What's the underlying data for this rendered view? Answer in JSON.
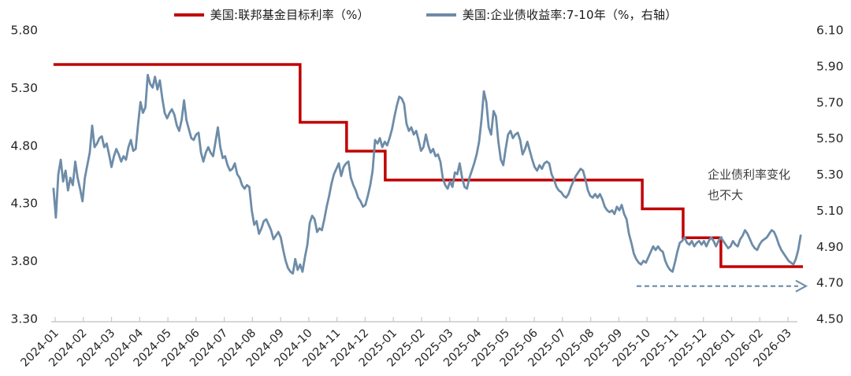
{
  "legend": [
    {
      "label": "美国:联邦基金目标利率（%）",
      "color": "#C00000"
    },
    {
      "label": "美国:企业债收益率:7-10年（%，右轴）",
      "color": "#6D8CA8"
    }
  ],
  "annotation": {
    "line1": "企业债利率变化",
    "line2": "也不大"
  },
  "chart_data": {
    "type": "line",
    "title": "",
    "xlabel": "",
    "ylabel_left": "",
    "ylabel_right": "",
    "grid": false,
    "legend_position": "top-center",
    "x_axis": {
      "tick_labels": [
        "2024-01",
        "2024-02",
        "2024-03",
        "2024-04",
        "2024-05",
        "2024-06",
        "2024-07",
        "2024-08",
        "2024-09",
        "2024-10",
        "2024-11",
        "2024-12",
        "2025-01",
        "2025-02",
        "2025-03",
        "2025-04",
        "2025-05",
        "2025-06",
        "2025-07",
        "2025-08",
        "2025-09",
        "2025-10",
        "2025-11",
        "2025-12",
        "2026-01",
        "2026-02",
        "2026-03"
      ]
    },
    "left_axis": {
      "min": 3.3,
      "max": 5.8,
      "tick_labels": [
        "5.80",
        "5.30",
        "4.80",
        "4.30",
        "3.80",
        "3.30"
      ]
    },
    "right_axis": {
      "min": 4.5,
      "max": 6.1,
      "tick_labels": [
        "6.10",
        "5.90",
        "5.70",
        "5.50",
        "5.30",
        "5.10",
        "4.90",
        "4.70",
        "4.50"
      ]
    },
    "series": [
      {
        "name": "美国:联邦基金目标利率（%）",
        "axis": "left",
        "color": "#C00000",
        "line_width": 3.5,
        "type": "step",
        "segments": [
          {
            "from": -0.06,
            "to": 8.69,
            "rate": 5.5
          },
          {
            "from": 8.69,
            "to": 10.34,
            "rate": 5.0
          },
          {
            "from": 10.34,
            "to": 11.71,
            "rate": 4.75
          },
          {
            "from": 11.71,
            "to": 20.83,
            "rate": 4.5
          },
          {
            "from": 20.83,
            "to": 22.28,
            "rate": 4.25
          },
          {
            "from": 22.28,
            "to": 23.62,
            "rate": 4.0
          },
          {
            "from": 23.62,
            "to": 26.53,
            "rate": 3.75
          }
        ]
      },
      {
        "name": "美国:企业债收益率:7-10年（%，右轴）",
        "axis": "right",
        "color": "#6D8CA8",
        "line_width": 2.8,
        "type": "line",
        "x_start": -0.06,
        "x_end": 26.45,
        "values": [
          5.22,
          5.06,
          5.3,
          5.38,
          5.26,
          5.32,
          5.21,
          5.28,
          5.24,
          5.37,
          5.28,
          5.22,
          5.15,
          5.28,
          5.35,
          5.42,
          5.57,
          5.45,
          5.47,
          5.5,
          5.51,
          5.45,
          5.47,
          5.41,
          5.34,
          5.4,
          5.44,
          5.41,
          5.37,
          5.4,
          5.38,
          5.45,
          5.49,
          5.43,
          5.44,
          5.58,
          5.7,
          5.64,
          5.67,
          5.85,
          5.8,
          5.78,
          5.84,
          5.77,
          5.82,
          5.72,
          5.64,
          5.61,
          5.64,
          5.66,
          5.63,
          5.57,
          5.54,
          5.6,
          5.71,
          5.6,
          5.55,
          5.5,
          5.49,
          5.52,
          5.53,
          5.42,
          5.37,
          5.42,
          5.45,
          5.42,
          5.4,
          5.48,
          5.56,
          5.45,
          5.39,
          5.4,
          5.35,
          5.32,
          5.33,
          5.36,
          5.3,
          5.28,
          5.24,
          5.22,
          5.24,
          5.23,
          5.1,
          5.02,
          5.04,
          4.97,
          5.0,
          5.04,
          5.05,
          5.02,
          4.99,
          4.94,
          4.96,
          4.98,
          4.95,
          4.88,
          4.82,
          4.78,
          4.76,
          4.75,
          4.83,
          4.77,
          4.8,
          4.76,
          4.84,
          4.91,
          5.03,
          5.07,
          5.05,
          4.98,
          5.0,
          4.99,
          5.05,
          5.12,
          5.18,
          5.25,
          5.3,
          5.33,
          5.36,
          5.29,
          5.34,
          5.36,
          5.37,
          5.28,
          5.24,
          5.21,
          5.17,
          5.15,
          5.12,
          5.13,
          5.18,
          5.24,
          5.32,
          5.49,
          5.47,
          5.5,
          5.45,
          5.48,
          5.46,
          5.5,
          5.55,
          5.62,
          5.68,
          5.73,
          5.72,
          5.69,
          5.58,
          5.54,
          5.56,
          5.52,
          5.54,
          5.49,
          5.43,
          5.45,
          5.52,
          5.46,
          5.42,
          5.44,
          5.4,
          5.41,
          5.37,
          5.28,
          5.24,
          5.22,
          5.26,
          5.23,
          5.31,
          5.3,
          5.36,
          5.28,
          5.23,
          5.22,
          5.28,
          5.32,
          5.36,
          5.41,
          5.48,
          5.6,
          5.76,
          5.7,
          5.56,
          5.52,
          5.65,
          5.62,
          5.48,
          5.38,
          5.35,
          5.44,
          5.52,
          5.54,
          5.5,
          5.52,
          5.53,
          5.49,
          5.41,
          5.44,
          5.48,
          5.43,
          5.38,
          5.34,
          5.32,
          5.35,
          5.33,
          5.36,
          5.37,
          5.36,
          5.3,
          5.27,
          5.23,
          5.21,
          5.2,
          5.18,
          5.17,
          5.19,
          5.23,
          5.26,
          5.29,
          5.31,
          5.33,
          5.32,
          5.27,
          5.21,
          5.18,
          5.17,
          5.19,
          5.17,
          5.19,
          5.16,
          5.12,
          5.1,
          5.09,
          5.1,
          5.08,
          5.12,
          5.1,
          5.13,
          5.08,
          5.05,
          4.97,
          4.92,
          4.86,
          4.83,
          4.81,
          4.8,
          4.82,
          4.81,
          4.84,
          4.87,
          4.9,
          4.88,
          4.9,
          4.88,
          4.87,
          4.82,
          4.79,
          4.77,
          4.76,
          4.81,
          4.87,
          4.92,
          4.93,
          4.95,
          4.92,
          4.91,
          4.93,
          4.9,
          4.92,
          4.93,
          4.91,
          4.93,
          4.9,
          4.93,
          4.95,
          4.93,
          4.9,
          4.93,
          4.95,
          4.93,
          4.91,
          4.89,
          4.9,
          4.93,
          4.91,
          4.9,
          4.94,
          4.96,
          4.99,
          4.97,
          4.94,
          4.91,
          4.89,
          4.88,
          4.91,
          4.93,
          4.94,
          4.95,
          4.97,
          4.99,
          4.98,
          4.95,
          4.91,
          4.88,
          4.86,
          4.84,
          4.82,
          4.81,
          4.8,
          4.83,
          4.88,
          4.96
        ]
      }
    ],
    "annotation_text": "企业债利率变化 也不大",
    "arrow": {
      "type": "dashed-arrow",
      "axis": "right",
      "value": 4.68,
      "x_from": 20.63,
      "x_to": 26.64,
      "color": "#7390AC"
    },
    "style": {
      "axis_line_color": "#C8C8C8",
      "tick_label_color": "#262626",
      "x_tick_rotation_deg": -45
    }
  }
}
